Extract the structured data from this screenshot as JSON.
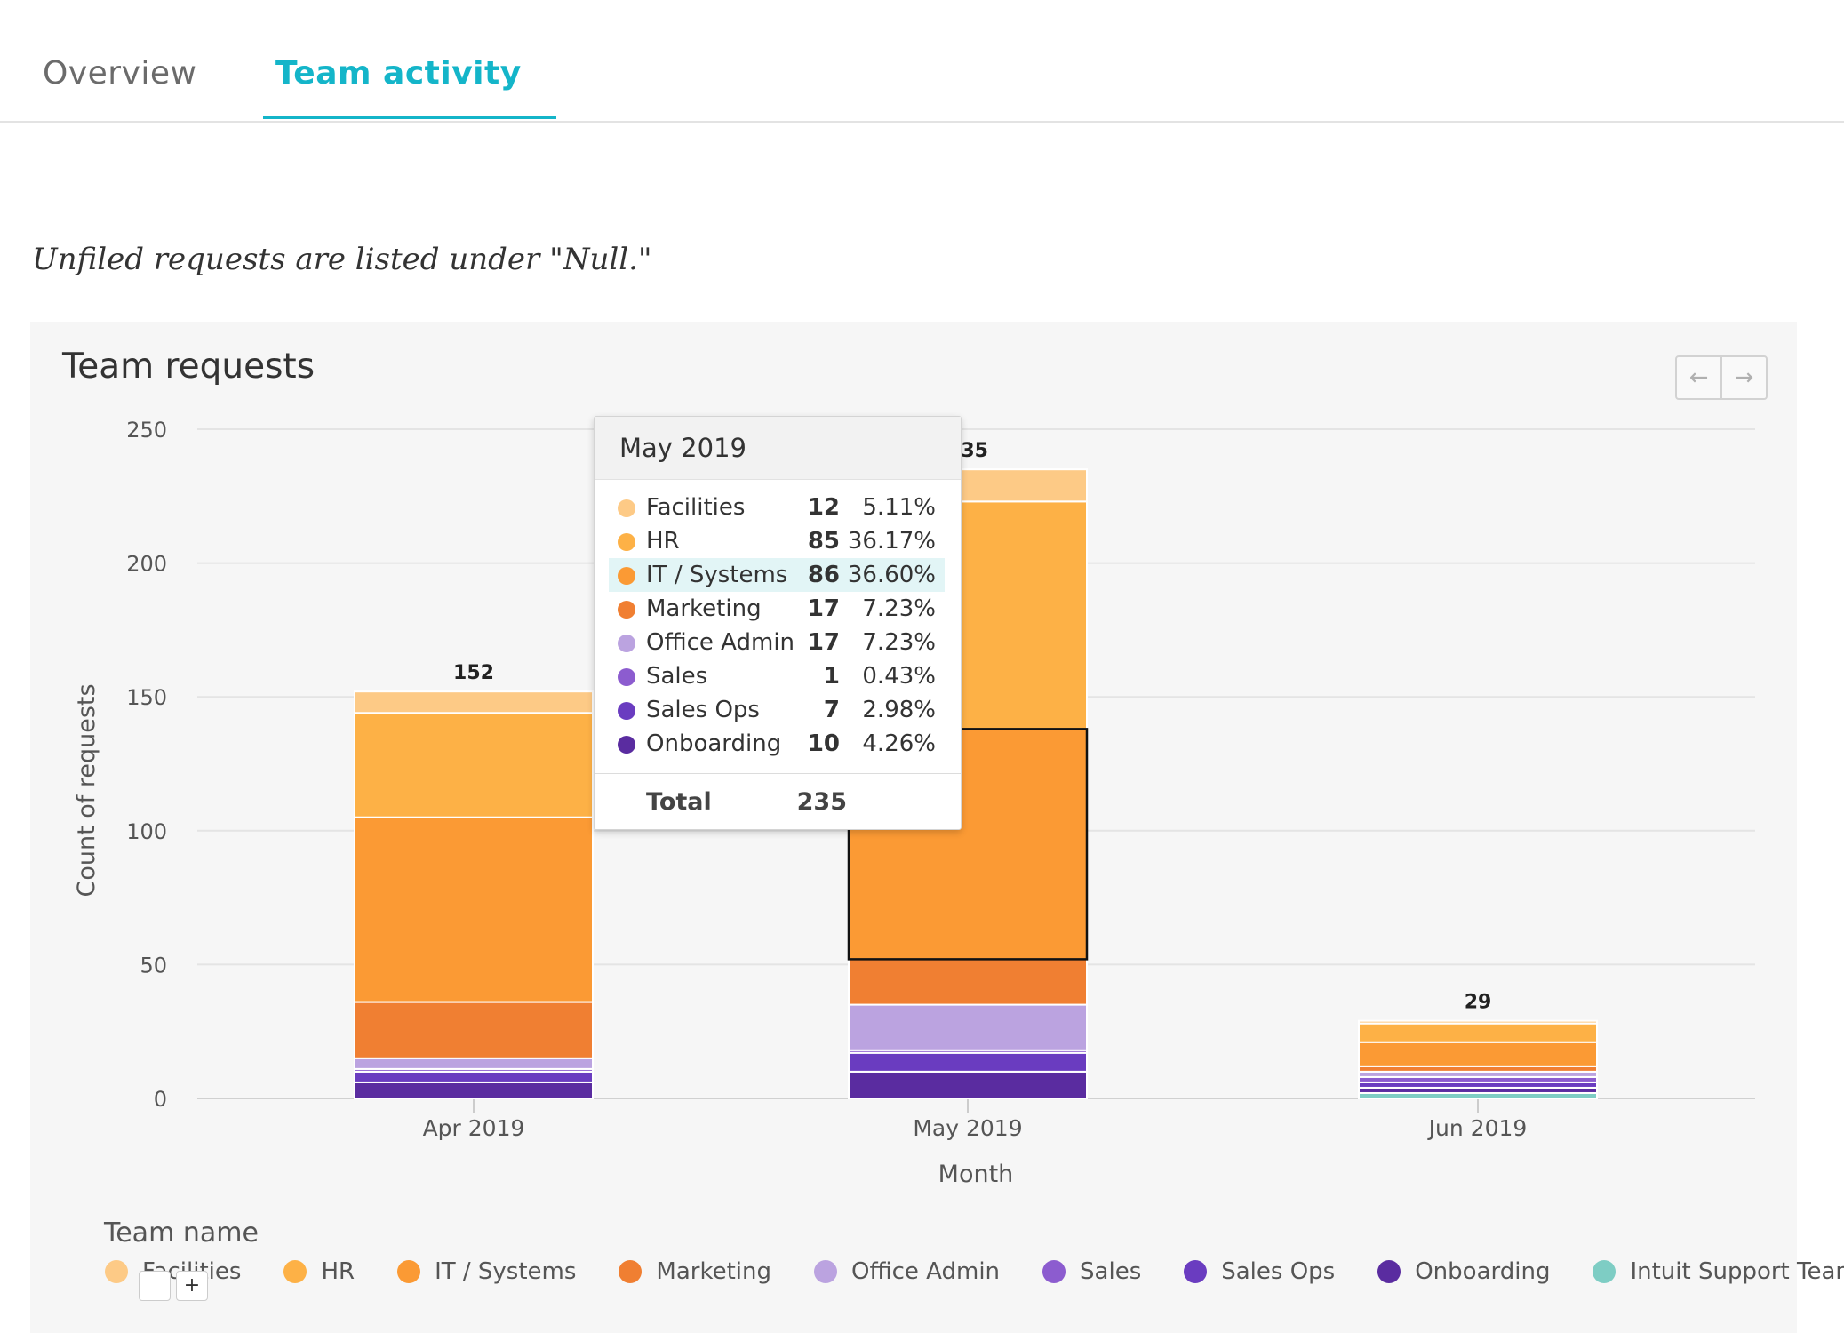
{
  "tabs": [
    {
      "label": "Overview",
      "active": false
    },
    {
      "label": "Team activity",
      "active": true
    }
  ],
  "note": "Unfiled requests are listed under \"Null.\"",
  "chart_title": "Team requests",
  "nav": {
    "prev_icon": "arrow-left-icon",
    "next_icon": "arrow-right-icon",
    "prev": "←",
    "next": "→"
  },
  "chart_data": {
    "type": "bar",
    "stacked": true,
    "title": "Team requests",
    "xlabel": "Month",
    "ylabel": "Count of requests",
    "ylim": [
      0,
      250
    ],
    "yticks": [
      0,
      50,
      100,
      150,
      200,
      250
    ],
    "categories": [
      "Apr 2019",
      "May 2019",
      "Jun 2019"
    ],
    "totals": [
      152,
      235,
      29
    ],
    "series": [
      {
        "name": "Facilities",
        "color": "#fdca86",
        "values": [
          8,
          12,
          1
        ]
      },
      {
        "name": "HR",
        "color": "#fdb146",
        "values": [
          39,
          85,
          7
        ]
      },
      {
        "name": "IT / Systems",
        "color": "#fb9a34",
        "values": [
          69,
          86,
          9
        ]
      },
      {
        "name": "Marketing",
        "color": "#f07f32",
        "values": [
          21,
          17,
          2
        ]
      },
      {
        "name": "Office Admin",
        "color": "#bba3e0",
        "values": [
          4,
          17,
          2
        ]
      },
      {
        "name": "Sales",
        "color": "#8c5ccf",
        "values": [
          1,
          1,
          2
        ]
      },
      {
        "name": "Sales Ops",
        "color": "#6a3cc0",
        "values": [
          4,
          7,
          2
        ]
      },
      {
        "name": "Onboarding",
        "color": "#5a2ca0",
        "values": [
          6,
          10,
          2
        ]
      },
      {
        "name": "Intuit Support Team",
        "color": "#7ecdc4",
        "values": [
          0,
          0,
          2
        ]
      }
    ],
    "legend_title": "Team name",
    "legend_position": "bottom"
  },
  "tooltip": {
    "title": "May 2019",
    "rows": [
      {
        "name": "Facilities",
        "count": "12",
        "pct": "5.11%",
        "color": "#fdca86"
      },
      {
        "name": "HR",
        "count": "85",
        "pct": "36.17%",
        "color": "#fdb146"
      },
      {
        "name": "IT / Systems",
        "count": "86",
        "pct": "36.60%",
        "color": "#fb9a34",
        "highlight": true
      },
      {
        "name": "Marketing",
        "count": "17",
        "pct": "7.23%",
        "color": "#f07f32"
      },
      {
        "name": "Office Admin",
        "count": "17",
        "pct": "7.23%",
        "color": "#bba3e0"
      },
      {
        "name": "Sales",
        "count": "1",
        "pct": "0.43%",
        "color": "#8c5ccf"
      },
      {
        "name": "Sales Ops",
        "count": "7",
        "pct": "2.98%",
        "color": "#6a3cc0"
      },
      {
        "name": "Onboarding",
        "count": "10",
        "pct": "4.26%",
        "color": "#5a2ca0"
      }
    ],
    "total_label": "Total",
    "total_value": "235"
  },
  "legend_mini": {
    "plus": "+"
  }
}
